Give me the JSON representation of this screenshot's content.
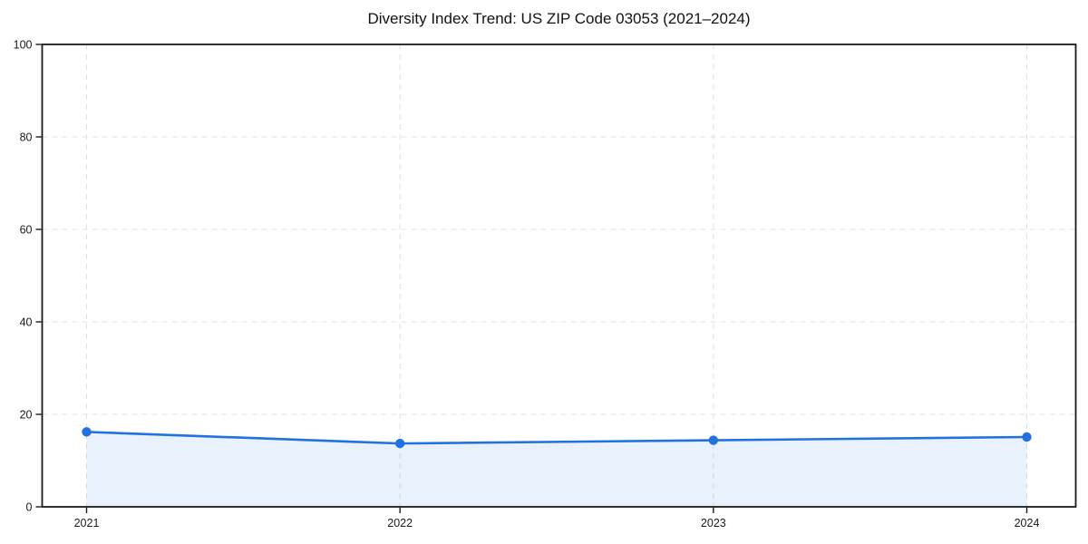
{
  "figure": {
    "background": "#ffffff"
  },
  "chart_data": {
    "type": "line",
    "title": "Diversity Index Trend: US ZIP Code 03053 (2021–2024)",
    "x_labels": [
      "2021",
      "2022",
      "2023",
      "2024"
    ],
    "series": [
      {
        "name": "Diversity Index",
        "values": [
          16.2,
          13.7,
          14.4,
          15.1
        ]
      }
    ],
    "xlabel": "",
    "ylabel": "",
    "ylim": [
      0,
      100
    ],
    "yticks": [
      0,
      20,
      40,
      60,
      80,
      100
    ],
    "grid": true,
    "grid_style": "dashed",
    "legend": "none",
    "area_fill": true,
    "marker": "circle",
    "line_color": "#2172e0",
    "fill_color": "rgba(33,114,224,0.10)",
    "grid_color": "#e0e0e0",
    "axis_color": "#1a1a1a",
    "text_color": "#1a1a1a"
  }
}
